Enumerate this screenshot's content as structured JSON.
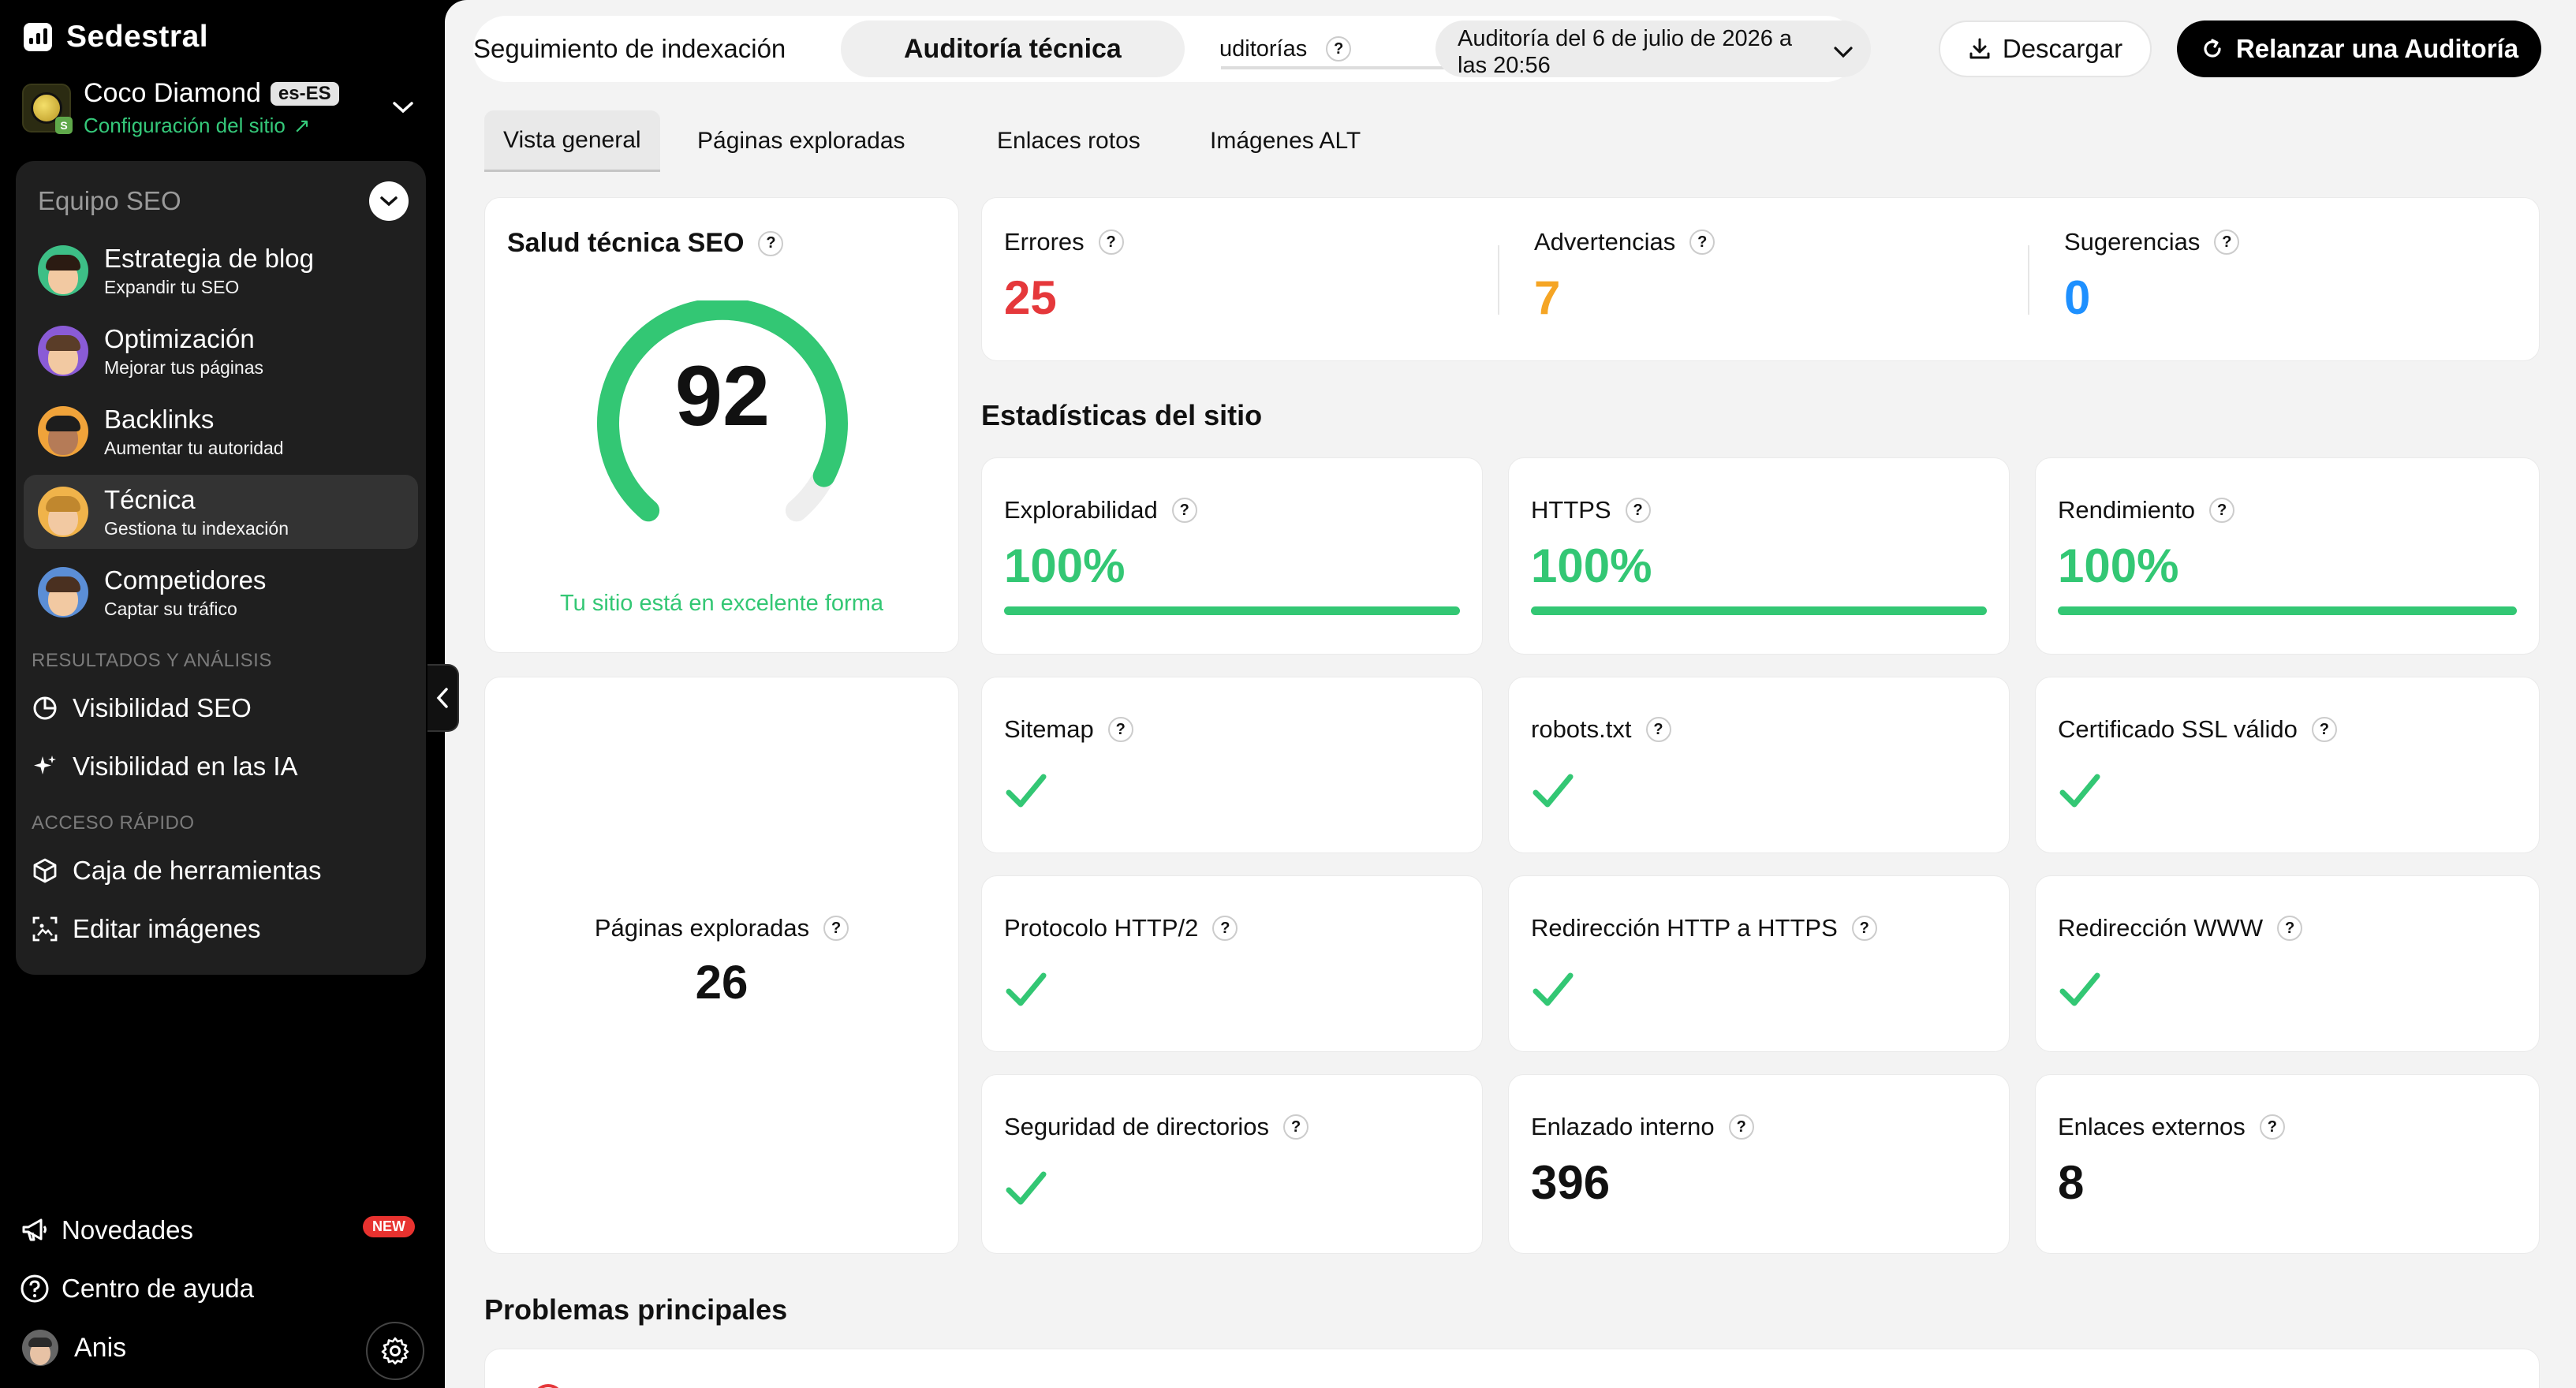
{
  "brand": {
    "name": "Sedestral"
  },
  "site": {
    "name": "Coco Diamond",
    "lang": "es-ES",
    "config_link": "Configuración del sitio"
  },
  "team": {
    "title": "Equipo SEO",
    "agents": [
      {
        "name": "Estrategia de blog",
        "subtitle": "Expandir tu SEO"
      },
      {
        "name": "Optimización",
        "subtitle": "Mejorar tus páginas"
      },
      {
        "name": "Backlinks",
        "subtitle": "Aumentar tu autoridad"
      },
      {
        "name": "Técnica",
        "subtitle": "Gestiona tu indexación"
      },
      {
        "name": "Competidores",
        "subtitle": "Captar su tráfico"
      }
    ],
    "results_label": "RESULTADOS Y ANÁLISIS",
    "results_items": [
      {
        "label": "Visibilidad SEO"
      },
      {
        "label": "Visibilidad en las IA"
      }
    ],
    "quick_label": "ACCESO RÁPIDO",
    "quick_items": [
      {
        "label": "Caja de herramientas"
      },
      {
        "label": "Editar imágenes"
      }
    ]
  },
  "bottom": {
    "news": "Novedades",
    "news_badge": "NEW",
    "help": "Centro de ayuda",
    "user": "Anis"
  },
  "header": {
    "tabs": [
      "Seguimiento de indexación",
      "Auditoría técnica",
      "uditorías"
    ],
    "audit_select": "Auditoría del 6 de julio de 2026 a las 20:56",
    "download": "Descargar",
    "relaunch": "Relanzar una Auditoría"
  },
  "subtabs": [
    "Vista general",
    "Páginas exploradas",
    "Enlaces rotos",
    "Imágenes ALT"
  ],
  "health": {
    "title": "Salud técnica SEO",
    "score": "92",
    "score_value": 92,
    "message": "Tu sitio está en excelente forma"
  },
  "issues": {
    "errors": {
      "label": "Errores",
      "value": "25",
      "color": "#e5383b"
    },
    "warnings": {
      "label": "Advertencias",
      "value": "7",
      "color": "#f5a524"
    },
    "suggestions": {
      "label": "Sugerencias",
      "value": "0",
      "color": "#1e90ff"
    }
  },
  "pages_explored": {
    "label": "Páginas exploradas",
    "value": "26"
  },
  "stats": {
    "title": "Estadísticas del sitio",
    "percent_cards": [
      {
        "label": "Explorabilidad",
        "value": "100%",
        "fill": 1.0
      },
      {
        "label": "HTTPS",
        "value": "100%",
        "fill": 1.0
      },
      {
        "label": "Rendimiento",
        "value": "100%",
        "fill": 1.0
      }
    ],
    "check_cards": [
      {
        "label": "Sitemap"
      },
      {
        "label": "robots.txt"
      },
      {
        "label": "Certificado SSL válido"
      },
      {
        "label": "Protocolo HTTP/2"
      },
      {
        "label": "Redirección HTTP a HTTPS"
      },
      {
        "label": "Redirección WWW"
      },
      {
        "label": "Seguridad de directorios"
      }
    ],
    "count_cards": [
      {
        "label": "Enlazado interno",
        "value": "396"
      },
      {
        "label": "Enlaces externos",
        "value": "8"
      }
    ]
  },
  "problems": {
    "title": "Problemas principales"
  },
  "colors": {
    "accent_green": "#33c774",
    "sidebar_bg": "#000000",
    "main_bg": "#f3f3f3"
  }
}
